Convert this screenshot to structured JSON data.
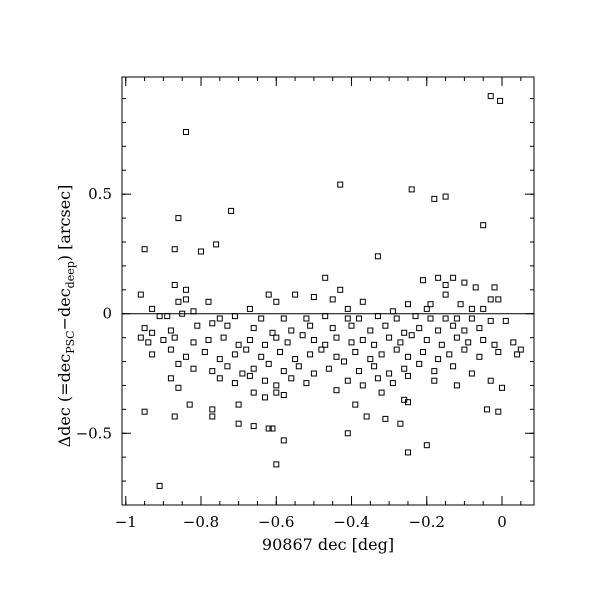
{
  "chart_data": {
    "type": "scatter",
    "xlabel": "90867 dec [deg]",
    "ylabel_parts": {
      "pre": "Δdec (=dec",
      "sub1": "PSC",
      "mid": "−dec",
      "sub2": "deep",
      "post": ") [arcsec]"
    },
    "xlim": [
      -1.01,
      0.085
    ],
    "ylim": [
      -0.8,
      0.99
    ],
    "x_ticks": [
      {
        "value": -1,
        "label": "−1"
      },
      {
        "value": -0.8,
        "label": "−0.8"
      },
      {
        "value": -0.6,
        "label": "−0.6"
      },
      {
        "value": -0.4,
        "label": "−0.4"
      },
      {
        "value": -0.2,
        "label": "−0.2"
      },
      {
        "value": 0,
        "label": "0"
      }
    ],
    "y_ticks": [
      {
        "value": 0.5,
        "label": "0.5"
      },
      {
        "value": 0,
        "label": "0"
      },
      {
        "value": -0.5,
        "label": "−0.5"
      }
    ],
    "x_minor_step": 0.05,
    "y_minor_step": 0.1,
    "reference_line_y": 0,
    "marker": "open-square",
    "points": [
      [
        -0.03,
        0.91
      ],
      [
        -0.005,
        0.89
      ],
      [
        -0.84,
        0.76
      ],
      [
        -0.43,
        0.54
      ],
      [
        -0.24,
        0.52
      ],
      [
        -0.15,
        0.49
      ],
      [
        -0.18,
        0.48
      ],
      [
        -0.72,
        0.43
      ],
      [
        -0.86,
        0.4
      ],
      [
        -0.05,
        0.37
      ],
      [
        -0.76,
        0.29
      ],
      [
        -0.87,
        0.27
      ],
      [
        -0.95,
        0.27
      ],
      [
        -0.8,
        0.26
      ],
      [
        -0.33,
        0.24
      ],
      [
        -0.47,
        0.15
      ],
      [
        -0.17,
        0.15
      ],
      [
        -0.13,
        0.15
      ],
      [
        -0.21,
        0.14
      ],
      [
        -0.1,
        0.13
      ],
      [
        -0.15,
        0.12
      ],
      [
        -0.07,
        0.11
      ],
      [
        -0.02,
        0.11
      ],
      [
        -0.87,
        0.12
      ],
      [
        -0.84,
        0.1
      ],
      [
        -0.43,
        0.1
      ],
      [
        -0.62,
        0.08
      ],
      [
        -0.55,
        0.08
      ],
      [
        -0.5,
        0.07
      ],
      [
        -0.96,
        0.08
      ],
      [
        -0.15,
        0.08
      ],
      [
        -0.03,
        0.06
      ],
      [
        -0.01,
        0.06
      ],
      [
        -0.84,
        0.06
      ],
      [
        -0.86,
        0.05
      ],
      [
        -0.78,
        0.05
      ],
      [
        -0.6,
        0.05
      ],
      [
        -0.45,
        0.06
      ],
      [
        -0.37,
        0.05
      ],
      [
        -0.25,
        0.04
      ],
      [
        -0.19,
        0.04
      ],
      [
        -0.11,
        0.04
      ],
      [
        -0.05,
        0.02
      ],
      [
        -0.93,
        0.02
      ],
      [
        -0.82,
        0.01
      ],
      [
        -0.67,
        0.02
      ],
      [
        -0.41,
        0.02
      ],
      [
        -0.29,
        0.01
      ],
      [
        -0.2,
        0.02
      ],
      [
        -0.08,
        0.02
      ],
      [
        -0.91,
        -0.01
      ],
      [
        -0.89,
        -0.01
      ],
      [
        -0.85,
        0.0
      ],
      [
        -0.75,
        -0.02
      ],
      [
        -0.71,
        -0.01
      ],
      [
        -0.64,
        -0.02
      ],
      [
        -0.58,
        -0.02
      ],
      [
        -0.52,
        -0.02
      ],
      [
        -0.47,
        -0.01
      ],
      [
        -0.41,
        -0.02
      ],
      [
        -0.38,
        -0.02
      ],
      [
        -0.33,
        -0.01
      ],
      [
        -0.28,
        -0.02
      ],
      [
        -0.23,
        -0.01
      ],
      [
        -0.19,
        -0.02
      ],
      [
        -0.15,
        -0.02
      ],
      [
        -0.12,
        -0.02
      ],
      [
        -0.08,
        -0.02
      ],
      [
        -0.03,
        -0.03
      ],
      [
        0.01,
        -0.03
      ],
      [
        -0.95,
        -0.06
      ],
      [
        -0.93,
        -0.08
      ],
      [
        -0.88,
        -0.07
      ],
      [
        -0.81,
        -0.05
      ],
      [
        -0.77,
        -0.04
      ],
      [
        -0.73,
        -0.05
      ],
      [
        -0.66,
        -0.06
      ],
      [
        -0.61,
        -0.08
      ],
      [
        -0.56,
        -0.07
      ],
      [
        -0.51,
        -0.05
      ],
      [
        -0.45,
        -0.06
      ],
      [
        -0.4,
        -0.05
      ],
      [
        -0.35,
        -0.07
      ],
      [
        -0.31,
        -0.05
      ],
      [
        -0.26,
        -0.08
      ],
      [
        -0.22,
        -0.06
      ],
      [
        -0.17,
        -0.07
      ],
      [
        -0.13,
        -0.05
      ],
      [
        -0.1,
        -0.07
      ],
      [
        -0.06,
        -0.06
      ],
      [
        -0.96,
        -0.1
      ],
      [
        -0.94,
        -0.12
      ],
      [
        -0.9,
        -0.11
      ],
      [
        -0.87,
        -0.1
      ],
      [
        -0.82,
        -0.12
      ],
      [
        -0.78,
        -0.11
      ],
      [
        -0.74,
        -0.1
      ],
      [
        -0.7,
        -0.13
      ],
      [
        -0.67,
        -0.11
      ],
      [
        -0.63,
        -0.13
      ],
      [
        -0.6,
        -0.1
      ],
      [
        -0.57,
        -0.12
      ],
      [
        -0.53,
        -0.09
      ],
      [
        -0.5,
        -0.11
      ],
      [
        -0.47,
        -0.13
      ],
      [
        -0.44,
        -0.1
      ],
      [
        -0.4,
        -0.12
      ],
      [
        -0.37,
        -0.11
      ],
      [
        -0.34,
        -0.13
      ],
      [
        -0.3,
        -0.1
      ],
      [
        -0.27,
        -0.12
      ],
      [
        -0.24,
        -0.09
      ],
      [
        -0.2,
        -0.11
      ],
      [
        -0.16,
        -0.13
      ],
      [
        -0.12,
        -0.1
      ],
      [
        -0.09,
        -0.12
      ],
      [
        -0.05,
        -0.11
      ],
      [
        -0.02,
        -0.13
      ],
      [
        0.03,
        -0.12
      ],
      [
        0.05,
        -0.15
      ],
      [
        -0.93,
        -0.17
      ],
      [
        -0.88,
        -0.15
      ],
      [
        -0.84,
        -0.18
      ],
      [
        -0.79,
        -0.16
      ],
      [
        -0.75,
        -0.19
      ],
      [
        -0.71,
        -0.17
      ],
      [
        -0.68,
        -0.15
      ],
      [
        -0.64,
        -0.18
      ],
      [
        -0.59,
        -0.16
      ],
      [
        -0.55,
        -0.19
      ],
      [
        -0.51,
        -0.17
      ],
      [
        -0.48,
        -0.15
      ],
      [
        -0.44,
        -0.18
      ],
      [
        -0.39,
        -0.16
      ],
      [
        -0.35,
        -0.19
      ],
      [
        -0.32,
        -0.17
      ],
      [
        -0.28,
        -0.15
      ],
      [
        -0.25,
        -0.18
      ],
      [
        -0.21,
        -0.16
      ],
      [
        -0.17,
        -0.19
      ],
      [
        -0.14,
        -0.17
      ],
      [
        -0.1,
        -0.15
      ],
      [
        -0.06,
        -0.18
      ],
      [
        -0.01,
        -0.16
      ],
      [
        0.04,
        -0.17
      ],
      [
        -0.86,
        -0.21
      ],
      [
        -0.82,
        -0.23
      ],
      [
        -0.77,
        -0.24
      ],
      [
        -0.73,
        -0.22
      ],
      [
        -0.69,
        -0.25
      ],
      [
        -0.66,
        -0.23
      ],
      [
        -0.62,
        -0.21
      ],
      [
        -0.58,
        -0.24
      ],
      [
        -0.54,
        -0.22
      ],
      [
        -0.5,
        -0.25
      ],
      [
        -0.46,
        -0.23
      ],
      [
        -0.42,
        -0.2
      ],
      [
        -0.38,
        -0.24
      ],
      [
        -0.34,
        -0.22
      ],
      [
        -0.3,
        -0.25
      ],
      [
        -0.26,
        -0.23
      ],
      [
        -0.22,
        -0.21
      ],
      [
        -0.18,
        -0.24
      ],
      [
        -0.13,
        -0.22
      ],
      [
        -0.08,
        -0.25
      ],
      [
        -0.88,
        -0.27
      ],
      [
        -0.75,
        -0.27
      ],
      [
        -0.71,
        -0.29
      ],
      [
        -0.67,
        -0.26
      ],
      [
        -0.63,
        -0.28
      ],
      [
        -0.6,
        -0.3
      ],
      [
        -0.56,
        -0.27
      ],
      [
        -0.52,
        -0.29
      ],
      [
        -0.41,
        -0.28
      ],
      [
        -0.37,
        -0.3
      ],
      [
        -0.33,
        -0.27
      ],
      [
        -0.29,
        -0.29
      ],
      [
        -0.25,
        -0.26
      ],
      [
        -0.18,
        -0.28
      ],
      [
        -0.12,
        -0.3
      ],
      [
        -0.03,
        -0.28
      ],
      [
        0.0,
        -0.31
      ],
      [
        -0.86,
        -0.31
      ],
      [
        -0.66,
        -0.33
      ],
      [
        -0.63,
        -0.35
      ],
      [
        -0.6,
        -0.33
      ],
      [
        -0.58,
        -0.34
      ],
      [
        -0.44,
        -0.32
      ],
      [
        -0.32,
        -0.33
      ],
      [
        -0.26,
        -0.36
      ],
      [
        -0.83,
        -0.38
      ],
      [
        -0.77,
        -0.4
      ],
      [
        -0.7,
        -0.38
      ],
      [
        -0.39,
        -0.38
      ],
      [
        -0.25,
        -0.37
      ],
      [
        -0.04,
        -0.4
      ],
      [
        -0.95,
        -0.41
      ],
      [
        -0.36,
        -0.43
      ],
      [
        -0.01,
        -0.41
      ],
      [
        -0.77,
        -0.43
      ],
      [
        -0.87,
        -0.43
      ],
      [
        -0.31,
        -0.44
      ],
      [
        -0.7,
        -0.46
      ],
      [
        -0.66,
        -0.47
      ],
      [
        -0.62,
        -0.48
      ],
      [
        -0.61,
        -0.48
      ],
      [
        -0.27,
        -0.46
      ],
      [
        -0.41,
        -0.5
      ],
      [
        -0.58,
        -0.53
      ],
      [
        -0.2,
        -0.55
      ],
      [
        -0.25,
        -0.58
      ],
      [
        -0.6,
        -0.63
      ],
      [
        -0.91,
        -0.72
      ]
    ]
  }
}
